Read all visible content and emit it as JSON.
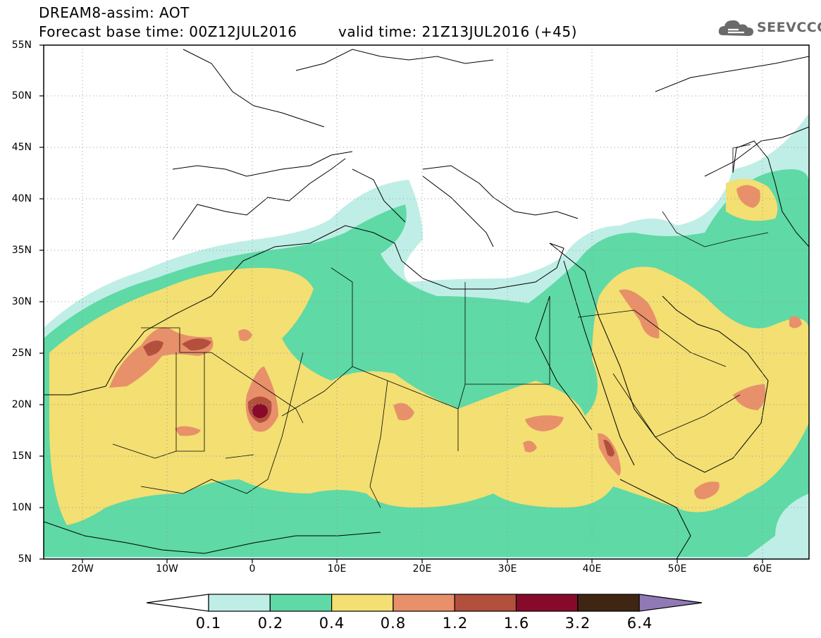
{
  "header": {
    "title_line1": "DREAM8-assim: AOT",
    "title_line2": "Forecast base time: 00Z12JUL2016",
    "valid_time": "valid time: 21Z13JUL2016 (+45)"
  },
  "logo": {
    "text": "SEEVCCC",
    "icon": "cloud-icon"
  },
  "map": {
    "y_axis_labels": [
      "55N",
      "50N",
      "45N",
      "40N",
      "35N",
      "30N",
      "25N",
      "20N",
      "15N",
      "10N",
      "5N"
    ],
    "x_axis_labels": [
      "20W",
      "10W",
      "0",
      "10E",
      "20E",
      "30E",
      "40E",
      "50E",
      "60E"
    ],
    "lon_range": [
      -25,
      65
    ],
    "lat_range": [
      5,
      55
    ],
    "grid": true
  },
  "colorbar": {
    "labels": [
      "0.1",
      "0.2",
      "0.4",
      "0.8",
      "1.2",
      "1.6",
      "3.2",
      "6.4"
    ],
    "colors": [
      "#ffffff",
      "#bfeee6",
      "#5fd9a5",
      "#f3df72",
      "#e8906a",
      "#b2503d",
      "#880a2b",
      "#3f2613",
      "#9179b6"
    ]
  }
}
